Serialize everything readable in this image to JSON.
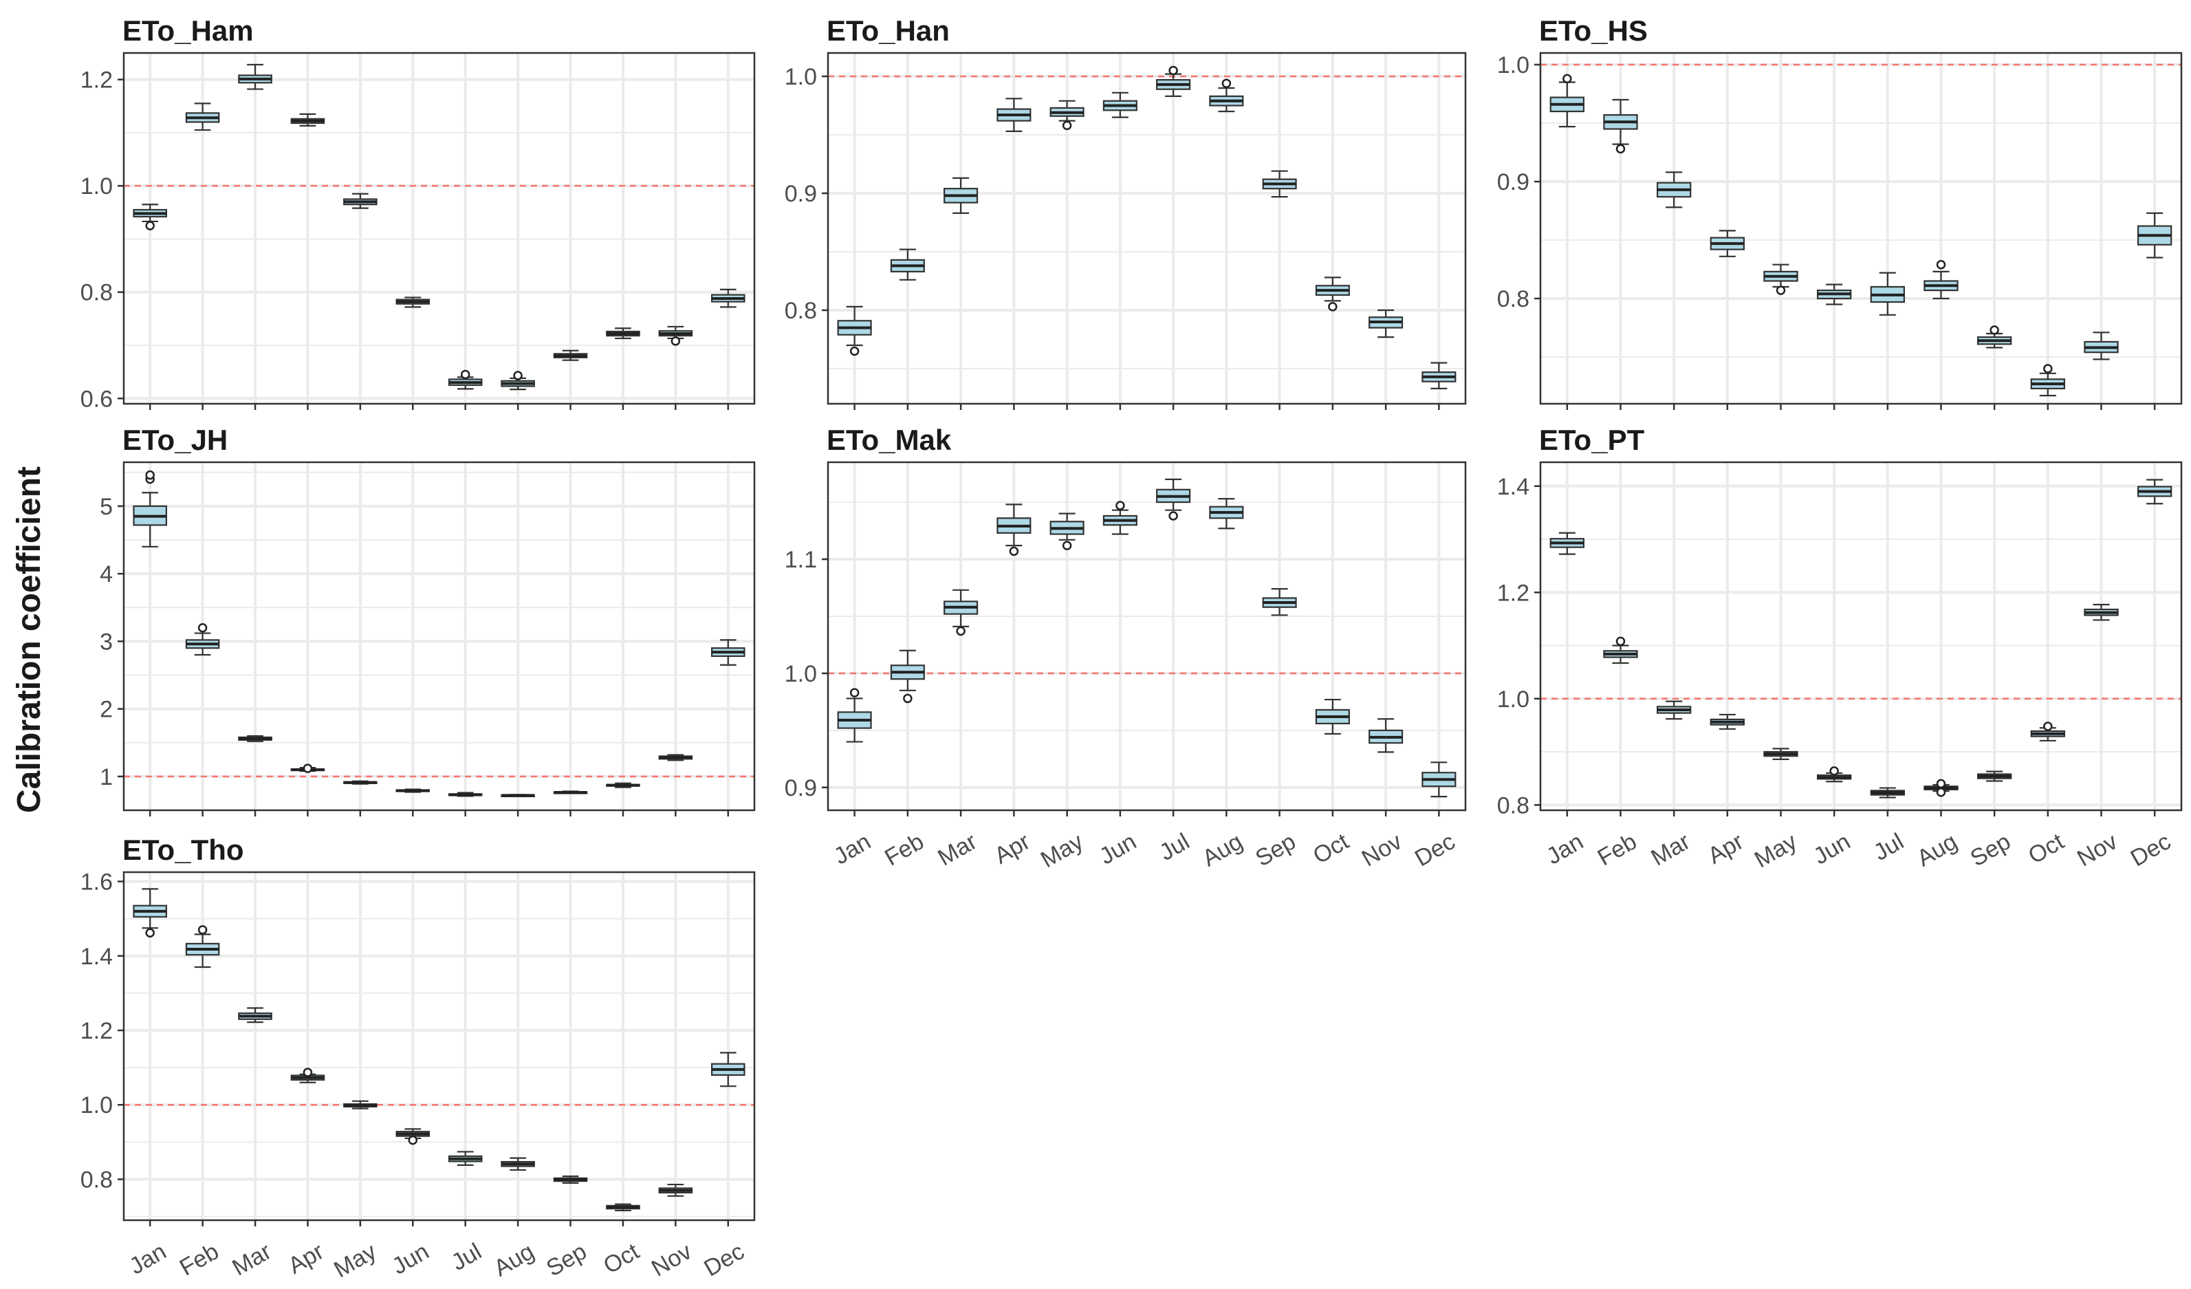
{
  "ylabel": "Calibration coefficient",
  "style": {
    "box_fill": "#add8e6",
    "ref_line_color": "#f8766d",
    "grid_color": "#ebebeb",
    "frame_color": "#333333"
  },
  "chart_data": [
    {
      "type": "box",
      "title": "ETo_Ham",
      "reference_line": 1.0,
      "ylim": [
        0.59,
        1.25
      ],
      "yticks": [
        0.6,
        0.8,
        1.0,
        1.2
      ],
      "ytick_labels": [
        "0.6",
        "0.8",
        "1.0",
        "1.2"
      ],
      "categories": [
        "Jan",
        "Feb",
        "Mar",
        "Apr",
        "May",
        "Jun",
        "Jul",
        "Aug",
        "Sep",
        "Oct",
        "Nov",
        "Dec"
      ],
      "show_x_labels": false,
      "boxes": [
        {
          "lo": 0.933,
          "q1": 0.942,
          "med": 0.948,
          "q3": 0.955,
          "hi": 0.965,
          "outliers": [
            0.925
          ]
        },
        {
          "lo": 1.105,
          "q1": 1.12,
          "med": 1.128,
          "q3": 1.137,
          "hi": 1.155,
          "outliers": []
        },
        {
          "lo": 1.182,
          "q1": 1.194,
          "med": 1.201,
          "q3": 1.208,
          "hi": 1.228,
          "outliers": []
        },
        {
          "lo": 1.113,
          "q1": 1.118,
          "med": 1.122,
          "q3": 1.126,
          "hi": 1.135,
          "outliers": []
        },
        {
          "lo": 0.958,
          "q1": 0.965,
          "med": 0.97,
          "q3": 0.975,
          "hi": 0.985,
          "outliers": []
        },
        {
          "lo": 0.772,
          "q1": 0.778,
          "med": 0.782,
          "q3": 0.786,
          "hi": 0.79,
          "outliers": []
        },
        {
          "lo": 0.618,
          "q1": 0.625,
          "med": 0.63,
          "q3": 0.636,
          "hi": 0.64,
          "outliers": [
            0.645
          ]
        },
        {
          "lo": 0.617,
          "q1": 0.623,
          "med": 0.628,
          "q3": 0.633,
          "hi": 0.638,
          "outliers": [
            0.643
          ]
        },
        {
          "lo": 0.672,
          "q1": 0.677,
          "med": 0.68,
          "q3": 0.684,
          "hi": 0.69,
          "outliers": []
        },
        {
          "lo": 0.713,
          "q1": 0.718,
          "med": 0.722,
          "q3": 0.726,
          "hi": 0.732,
          "outliers": []
        },
        {
          "lo": 0.713,
          "q1": 0.718,
          "med": 0.722,
          "q3": 0.727,
          "hi": 0.735,
          "outliers": [
            0.708
          ]
        },
        {
          "lo": 0.772,
          "q1": 0.782,
          "med": 0.788,
          "q3": 0.795,
          "hi": 0.805,
          "outliers": []
        }
      ]
    },
    {
      "type": "box",
      "title": "ETo_Han",
      "reference_line": 1.0,
      "ylim": [
        0.72,
        1.02
      ],
      "yticks": [
        0.8,
        0.9,
        1.0
      ],
      "ytick_labels": [
        "0.8",
        "0.9",
        "1.0"
      ],
      "categories": [
        "Jan",
        "Feb",
        "Mar",
        "Apr",
        "May",
        "Jun",
        "Jul",
        "Aug",
        "Sep",
        "Oct",
        "Nov",
        "Dec"
      ],
      "show_x_labels": false,
      "boxes": [
        {
          "lo": 0.77,
          "q1": 0.779,
          "med": 0.785,
          "q3": 0.791,
          "hi": 0.803,
          "outliers": [
            0.765
          ]
        },
        {
          "lo": 0.826,
          "q1": 0.833,
          "med": 0.838,
          "q3": 0.843,
          "hi": 0.852,
          "outliers": []
        },
        {
          "lo": 0.883,
          "q1": 0.892,
          "med": 0.898,
          "q3": 0.904,
          "hi": 0.913,
          "outliers": []
        },
        {
          "lo": 0.953,
          "q1": 0.962,
          "med": 0.967,
          "q3": 0.972,
          "hi": 0.981,
          "outliers": []
        },
        {
          "lo": 0.962,
          "q1": 0.966,
          "med": 0.969,
          "q3": 0.973,
          "hi": 0.979,
          "outliers": [
            0.958
          ]
        },
        {
          "lo": 0.965,
          "q1": 0.971,
          "med": 0.975,
          "q3": 0.979,
          "hi": 0.986,
          "outliers": []
        },
        {
          "lo": 0.983,
          "q1": 0.989,
          "med": 0.993,
          "q3": 0.997,
          "hi": 1.002,
          "outliers": [
            1.005
          ]
        },
        {
          "lo": 0.97,
          "q1": 0.975,
          "med": 0.979,
          "q3": 0.983,
          "hi": 0.99,
          "outliers": [
            0.994
          ]
        },
        {
          "lo": 0.897,
          "q1": 0.904,
          "med": 0.908,
          "q3": 0.912,
          "hi": 0.919,
          "outliers": []
        },
        {
          "lo": 0.808,
          "q1": 0.813,
          "med": 0.817,
          "q3": 0.821,
          "hi": 0.828,
          "outliers": [
            0.803
          ]
        },
        {
          "lo": 0.777,
          "q1": 0.785,
          "med": 0.79,
          "q3": 0.794,
          "hi": 0.8,
          "outliers": []
        },
        {
          "lo": 0.733,
          "q1": 0.739,
          "med": 0.743,
          "q3": 0.747,
          "hi": 0.755,
          "outliers": []
        }
      ]
    },
    {
      "type": "box",
      "title": "ETo_HS",
      "reference_line": 1.0,
      "ylim": [
        0.71,
        1.01
      ],
      "yticks": [
        0.8,
        0.9,
        1.0
      ],
      "ytick_labels": [
        "0.8",
        "0.9",
        "1.0"
      ],
      "categories": [
        "Jan",
        "Feb",
        "Mar",
        "Apr",
        "May",
        "Jun",
        "Jul",
        "Aug",
        "Sep",
        "Oct",
        "Nov",
        "Dec"
      ],
      "show_x_labels": false,
      "boxes": [
        {
          "lo": 0.947,
          "q1": 0.96,
          "med": 0.966,
          "q3": 0.972,
          "hi": 0.985,
          "outliers": [
            0.988
          ]
        },
        {
          "lo": 0.932,
          "q1": 0.945,
          "med": 0.951,
          "q3": 0.957,
          "hi": 0.97,
          "outliers": [
            0.928
          ]
        },
        {
          "lo": 0.878,
          "q1": 0.887,
          "med": 0.893,
          "q3": 0.899,
          "hi": 0.908,
          "outliers": []
        },
        {
          "lo": 0.836,
          "q1": 0.842,
          "med": 0.847,
          "q3": 0.852,
          "hi": 0.858,
          "outliers": []
        },
        {
          "lo": 0.81,
          "q1": 0.815,
          "med": 0.819,
          "q3": 0.823,
          "hi": 0.829,
          "outliers": [
            0.807
          ]
        },
        {
          "lo": 0.795,
          "q1": 0.8,
          "med": 0.804,
          "q3": 0.807,
          "hi": 0.812,
          "outliers": []
        },
        {
          "lo": 0.786,
          "q1": 0.797,
          "med": 0.803,
          "q3": 0.81,
          "hi": 0.822,
          "outliers": []
        },
        {
          "lo": 0.8,
          "q1": 0.807,
          "med": 0.811,
          "q3": 0.815,
          "hi": 0.823,
          "outliers": [
            0.829
          ]
        },
        {
          "lo": 0.758,
          "q1": 0.761,
          "med": 0.764,
          "q3": 0.767,
          "hi": 0.77,
          "outliers": [
            0.773
          ]
        },
        {
          "lo": 0.717,
          "q1": 0.723,
          "med": 0.727,
          "q3": 0.731,
          "hi": 0.736,
          "outliers": [
            0.74
          ]
        },
        {
          "lo": 0.748,
          "q1": 0.754,
          "med": 0.758,
          "q3": 0.763,
          "hi": 0.771,
          "outliers": []
        },
        {
          "lo": 0.835,
          "q1": 0.846,
          "med": 0.854,
          "q3": 0.862,
          "hi": 0.873,
          "outliers": []
        }
      ]
    },
    {
      "type": "box",
      "title": "ETo_JH",
      "reference_line": 1.0,
      "ylim": [
        0.5,
        5.65
      ],
      "yticks": [
        1,
        2,
        3,
        4,
        5
      ],
      "ytick_labels": [
        "1",
        "2",
        "3",
        "4",
        "5"
      ],
      "categories": [
        "Jan",
        "Feb",
        "Mar",
        "Apr",
        "May",
        "Jun",
        "Jul",
        "Aug",
        "Sep",
        "Oct",
        "Nov",
        "Dec"
      ],
      "show_x_labels": false,
      "boxes": [
        {
          "lo": 4.4,
          "q1": 4.72,
          "med": 4.85,
          "q3": 5.0,
          "hi": 5.2,
          "outliers": [
            5.4,
            5.46
          ]
        },
        {
          "lo": 2.8,
          "q1": 2.9,
          "med": 2.96,
          "q3": 3.02,
          "hi": 3.12,
          "outliers": [
            3.2
          ]
        },
        {
          "lo": 1.52,
          "q1": 1.54,
          "med": 1.56,
          "q3": 1.58,
          "hi": 1.6,
          "outliers": []
        },
        {
          "lo": 1.08,
          "q1": 1.09,
          "med": 1.1,
          "q3": 1.11,
          "hi": 1.13,
          "outliers": [
            1.12
          ]
        },
        {
          "lo": 0.89,
          "q1": 0.9,
          "med": 0.91,
          "q3": 0.92,
          "hi": 0.93,
          "outliers": []
        },
        {
          "lo": 0.77,
          "q1": 0.78,
          "med": 0.79,
          "q3": 0.8,
          "hi": 0.81,
          "outliers": []
        },
        {
          "lo": 0.71,
          "q1": 0.72,
          "med": 0.73,
          "q3": 0.74,
          "hi": 0.76,
          "outliers": []
        },
        {
          "lo": 0.71,
          "q1": 0.715,
          "med": 0.72,
          "q3": 0.725,
          "hi": 0.73,
          "outliers": []
        },
        {
          "lo": 0.75,
          "q1": 0.76,
          "med": 0.765,
          "q3": 0.77,
          "hi": 0.78,
          "outliers": []
        },
        {
          "lo": 0.84,
          "q1": 0.86,
          "med": 0.87,
          "q3": 0.88,
          "hi": 0.9,
          "outliers": []
        },
        {
          "lo": 1.24,
          "q1": 1.26,
          "med": 1.28,
          "q3": 1.3,
          "hi": 1.32,
          "outliers": []
        },
        {
          "lo": 2.65,
          "q1": 2.78,
          "med": 2.84,
          "q3": 2.9,
          "hi": 3.02,
          "outliers": []
        }
      ]
    },
    {
      "type": "box",
      "title": "ETo_Mak",
      "reference_line": 1.0,
      "ylim": [
        0.88,
        1.185
      ],
      "yticks": [
        0.9,
        1.0,
        1.1
      ],
      "ytick_labels": [
        "0.9",
        "1.0",
        "1.1"
      ],
      "categories": [
        "Jan",
        "Feb",
        "Mar",
        "Apr",
        "May",
        "Jun",
        "Jul",
        "Aug",
        "Sep",
        "Oct",
        "Nov",
        "Dec"
      ],
      "show_x_labels": true,
      "boxes": [
        {
          "lo": 0.94,
          "q1": 0.952,
          "med": 0.959,
          "q3": 0.966,
          "hi": 0.978,
          "outliers": [
            0.983
          ]
        },
        {
          "lo": 0.985,
          "q1": 0.995,
          "med": 1.001,
          "q3": 1.007,
          "hi": 1.02,
          "outliers": [
            0.978
          ]
        },
        {
          "lo": 1.041,
          "q1": 1.052,
          "med": 1.058,
          "q3": 1.063,
          "hi": 1.073,
          "outliers": [
            1.037
          ]
        },
        {
          "lo": 1.112,
          "q1": 1.123,
          "med": 1.129,
          "q3": 1.136,
          "hi": 1.148,
          "outliers": [
            1.107
          ]
        },
        {
          "lo": 1.117,
          "q1": 1.122,
          "med": 1.127,
          "q3": 1.133,
          "hi": 1.14,
          "outliers": [
            1.112
          ]
        },
        {
          "lo": 1.122,
          "q1": 1.13,
          "med": 1.134,
          "q3": 1.138,
          "hi": 1.143,
          "outliers": [
            1.147
          ]
        },
        {
          "lo": 1.143,
          "q1": 1.15,
          "med": 1.155,
          "q3": 1.161,
          "hi": 1.17,
          "outliers": [
            1.138
          ]
        },
        {
          "lo": 1.127,
          "q1": 1.136,
          "med": 1.141,
          "q3": 1.146,
          "hi": 1.153,
          "outliers": []
        },
        {
          "lo": 1.051,
          "q1": 1.058,
          "med": 1.062,
          "q3": 1.066,
          "hi": 1.074,
          "outliers": []
        },
        {
          "lo": 0.947,
          "q1": 0.956,
          "med": 0.962,
          "q3": 0.968,
          "hi": 0.977,
          "outliers": []
        },
        {
          "lo": 0.931,
          "q1": 0.939,
          "med": 0.944,
          "q3": 0.95,
          "hi": 0.96,
          "outliers": []
        },
        {
          "lo": 0.892,
          "q1": 0.901,
          "med": 0.907,
          "q3": 0.913,
          "hi": 0.922,
          "outliers": []
        }
      ]
    },
    {
      "type": "box",
      "title": "ETo_PT",
      "reference_line": 1.0,
      "ylim": [
        0.79,
        1.445
      ],
      "yticks": [
        0.8,
        1.0,
        1.2,
        1.4
      ],
      "ytick_labels": [
        "0.8",
        "1.0",
        "1.2",
        "1.4"
      ],
      "categories": [
        "Jan",
        "Feb",
        "Mar",
        "Apr",
        "May",
        "Jun",
        "Jul",
        "Aug",
        "Sep",
        "Oct",
        "Nov",
        "Dec"
      ],
      "show_x_labels": true,
      "boxes": [
        {
          "lo": 1.272,
          "q1": 1.285,
          "med": 1.293,
          "q3": 1.301,
          "hi": 1.312,
          "outliers": []
        },
        {
          "lo": 1.067,
          "q1": 1.078,
          "med": 1.084,
          "q3": 1.09,
          "hi": 1.1,
          "outliers": [
            1.108
          ]
        },
        {
          "lo": 0.962,
          "q1": 0.973,
          "med": 0.979,
          "q3": 0.985,
          "hi": 0.995,
          "outliers": []
        },
        {
          "lo": 0.943,
          "q1": 0.951,
          "med": 0.956,
          "q3": 0.961,
          "hi": 0.97,
          "outliers": []
        },
        {
          "lo": 0.886,
          "q1": 0.892,
          "med": 0.896,
          "q3": 0.9,
          "hi": 0.906,
          "outliers": []
        },
        {
          "lo": 0.844,
          "q1": 0.849,
          "med": 0.852,
          "q3": 0.856,
          "hi": 0.86,
          "outliers": [
            0.864
          ]
        },
        {
          "lo": 0.814,
          "q1": 0.819,
          "med": 0.823,
          "q3": 0.827,
          "hi": 0.832,
          "outliers": []
        },
        {
          "lo": 0.826,
          "q1": 0.829,
          "med": 0.832,
          "q3": 0.835,
          "hi": 0.838,
          "outliers": [
            0.824,
            0.84
          ]
        },
        {
          "lo": 0.845,
          "q1": 0.85,
          "med": 0.854,
          "q3": 0.858,
          "hi": 0.863,
          "outliers": []
        },
        {
          "lo": 0.921,
          "q1": 0.929,
          "med": 0.934,
          "q3": 0.939,
          "hi": 0.945,
          "outliers": [
            0.948
          ]
        },
        {
          "lo": 1.148,
          "q1": 1.157,
          "med": 1.162,
          "q3": 1.168,
          "hi": 1.177,
          "outliers": []
        },
        {
          "lo": 1.367,
          "q1": 1.381,
          "med": 1.39,
          "q3": 1.399,
          "hi": 1.412,
          "outliers": []
        }
      ]
    },
    {
      "type": "box",
      "title": "ETo_Tho",
      "reference_line": 1.0,
      "ylim": [
        0.69,
        1.625
      ],
      "yticks": [
        0.8,
        1.0,
        1.2,
        1.4,
        1.6
      ],
      "ytick_labels": [
        "0.8",
        "1.0",
        "1.2",
        "1.4",
        "1.6"
      ],
      "categories": [
        "Jan",
        "Feb",
        "Mar",
        "Apr",
        "May",
        "Jun",
        "Jul",
        "Aug",
        "Sep",
        "Oct",
        "Nov",
        "Dec"
      ],
      "show_x_labels": true,
      "boxes": [
        {
          "lo": 1.475,
          "q1": 1.505,
          "med": 1.52,
          "q3": 1.535,
          "hi": 1.58,
          "outliers": [
            1.462
          ]
        },
        {
          "lo": 1.37,
          "q1": 1.403,
          "med": 1.418,
          "q3": 1.433,
          "hi": 1.458,
          "outliers": [
            1.47
          ]
        },
        {
          "lo": 1.222,
          "q1": 1.23,
          "med": 1.238,
          "q3": 1.246,
          "hi": 1.26,
          "outliers": []
        },
        {
          "lo": 1.06,
          "q1": 1.067,
          "med": 1.073,
          "q3": 1.079,
          "hi": 1.082,
          "outliers": [
            1.087
          ]
        },
        {
          "lo": 0.99,
          "q1": 0.995,
          "med": 0.998,
          "q3": 1.002,
          "hi": 1.01,
          "outliers": []
        },
        {
          "lo": 0.91,
          "q1": 0.916,
          "med": 0.922,
          "q3": 0.928,
          "hi": 0.935,
          "outliers": [
            0.905
          ]
        },
        {
          "lo": 0.838,
          "q1": 0.848,
          "med": 0.855,
          "q3": 0.862,
          "hi": 0.874,
          "outliers": []
        },
        {
          "lo": 0.825,
          "q1": 0.835,
          "med": 0.841,
          "q3": 0.847,
          "hi": 0.857,
          "outliers": []
        },
        {
          "lo": 0.79,
          "q1": 0.795,
          "med": 0.799,
          "q3": 0.803,
          "hi": 0.808,
          "outliers": []
        },
        {
          "lo": 0.716,
          "q1": 0.721,
          "med": 0.725,
          "q3": 0.729,
          "hi": 0.733,
          "outliers": []
        },
        {
          "lo": 0.755,
          "q1": 0.764,
          "med": 0.77,
          "q3": 0.776,
          "hi": 0.786,
          "outliers": []
        },
        {
          "lo": 1.05,
          "q1": 1.08,
          "med": 1.095,
          "q3": 1.11,
          "hi": 1.14,
          "outliers": []
        }
      ]
    }
  ]
}
